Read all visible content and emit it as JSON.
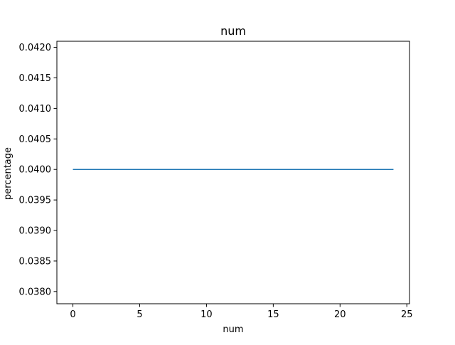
{
  "chart_data": {
    "type": "line",
    "title": "num",
    "xlabel": "num",
    "ylabel": "percentage",
    "xlim": [
      -1.2,
      25.2
    ],
    "ylim": [
      0.0378,
      0.0421
    ],
    "xticks": [
      0,
      5,
      10,
      15,
      20,
      25
    ],
    "xtick_labels": [
      "0",
      "5",
      "10",
      "15",
      "20",
      "25"
    ],
    "yticks": [
      0.038,
      0.0385,
      0.039,
      0.0395,
      0.04,
      0.0405,
      0.041,
      0.0415,
      0.042
    ],
    "ytick_labels": [
      "0.0380",
      "0.0385",
      "0.0390",
      "0.0395",
      "0.0400",
      "0.0405",
      "0.0410",
      "0.0415",
      "0.0420"
    ],
    "grid": false,
    "series": [
      {
        "color": "#1f77b4",
        "x": [
          0,
          1,
          2,
          3,
          4,
          5,
          6,
          7,
          8,
          9,
          10,
          11,
          12,
          13,
          14,
          15,
          16,
          17,
          18,
          19,
          20,
          21,
          22,
          23,
          24
        ],
        "y": [
          0.04,
          0.04,
          0.04,
          0.04,
          0.04,
          0.04,
          0.04,
          0.04,
          0.04,
          0.04,
          0.04,
          0.04,
          0.04,
          0.04,
          0.04,
          0.04,
          0.04,
          0.04,
          0.04,
          0.04,
          0.04,
          0.04,
          0.04,
          0.04,
          0.04
        ]
      }
    ]
  }
}
